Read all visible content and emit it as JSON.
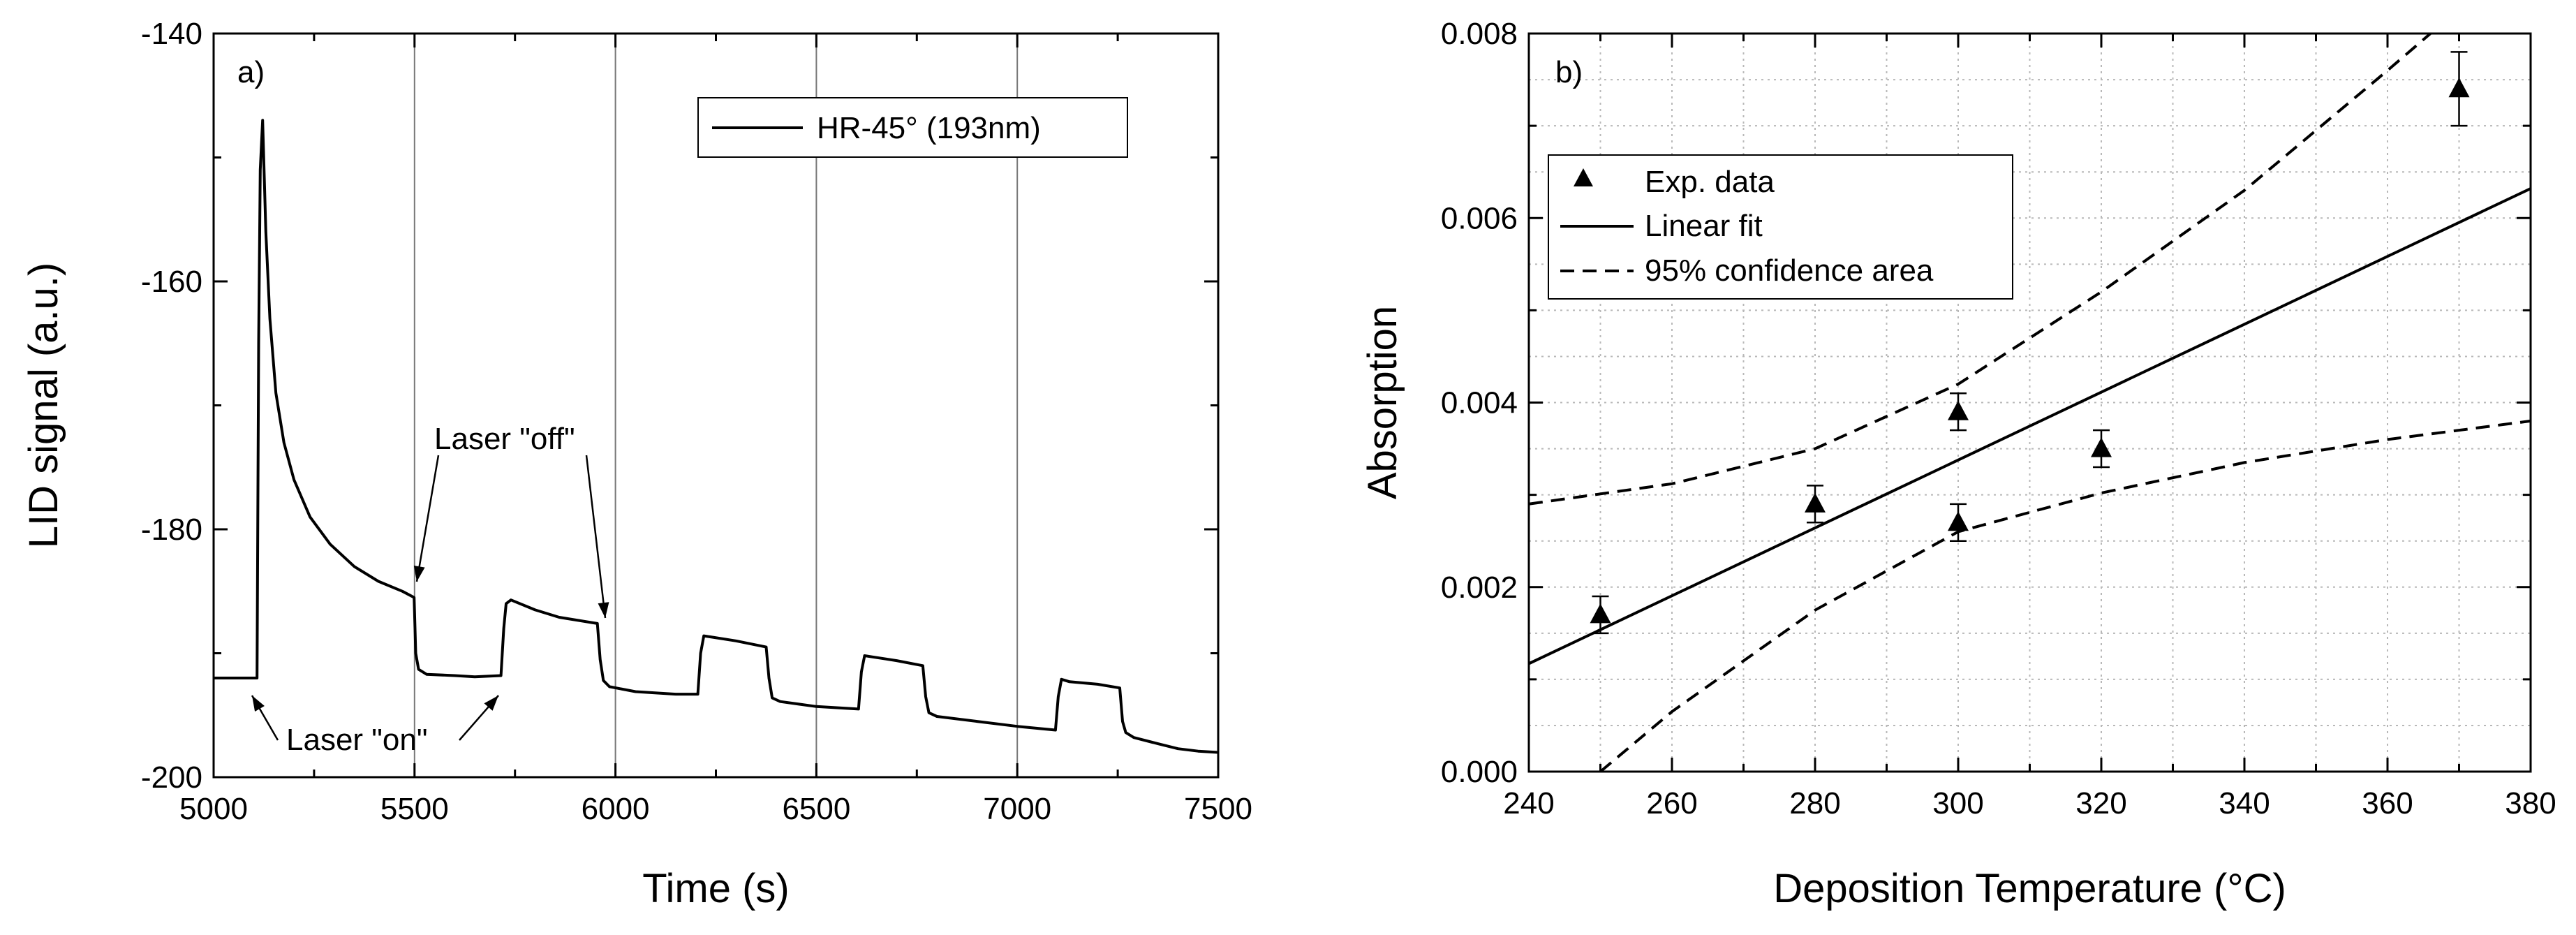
{
  "chart_data": [
    {
      "panel_label": "a)",
      "type": "line",
      "xlabel": "Time (s)",
      "ylabel": "LID signal (a.u.)",
      "xlim": [
        5000,
        7500
      ],
      "ylim": [
        -200,
        -140
      ],
      "xticks": [
        5000,
        5500,
        6000,
        6500,
        7000,
        7500
      ],
      "yticks": [
        -200,
        -180,
        -160,
        -140
      ],
      "vertical_lines": [
        5500,
        6000,
        6500,
        7000
      ],
      "legend": [
        "HR-45° (193nm)"
      ],
      "series": [
        {
          "name": "HR-45° (193nm)",
          "x": [
            5000,
            5108,
            5112,
            5116,
            5122,
            5130,
            5140,
            5155,
            5175,
            5200,
            5240,
            5290,
            5350,
            5410,
            5470,
            5499,
            5503,
            5510,
            5530,
            5600,
            5650,
            5715,
            5722,
            5728,
            5740,
            5800,
            5860,
            5955,
            5962,
            5970,
            5985,
            6050,
            6150,
            6205,
            6212,
            6220,
            6240,
            6300,
            6375,
            6382,
            6390,
            6410,
            6500,
            6605,
            6612,
            6620,
            6640,
            6700,
            6765,
            6772,
            6780,
            6800,
            6900,
            7000,
            7095,
            7102,
            7110,
            7130,
            7200,
            7255,
            7262,
            7270,
            7290,
            7350,
            7400,
            7450,
            7500
          ],
          "y": [
            -192.0,
            -192.0,
            -165.0,
            -151.0,
            -147.0,
            -156.0,
            -163.0,
            -169.0,
            -173.0,
            -176.0,
            -179.0,
            -181.2,
            -183.0,
            -184.2,
            -185.0,
            -185.5,
            -190.0,
            -191.3,
            -191.7,
            -191.8,
            -191.9,
            -191.8,
            -188.0,
            -186.0,
            -185.7,
            -186.5,
            -187.1,
            -187.6,
            -190.5,
            -192.2,
            -192.7,
            -193.1,
            -193.3,
            -193.3,
            -190.0,
            -188.6,
            -188.7,
            -189.0,
            -189.5,
            -192.0,
            -193.6,
            -193.9,
            -194.3,
            -194.5,
            -191.5,
            -190.2,
            -190.3,
            -190.6,
            -191.0,
            -193.5,
            -194.8,
            -195.1,
            -195.5,
            -195.9,
            -196.2,
            -193.5,
            -192.1,
            -192.3,
            -192.5,
            -192.8,
            -195.5,
            -196.4,
            -196.8,
            -197.3,
            -197.7,
            -197.9,
            -198.0
          ]
        }
      ],
      "annotations": [
        {
          "text": "Laser \"off\"",
          "points_to": [
            5500,
            -185.5
          ]
        },
        {
          "text": "Laser \"off\"",
          "points_to": [
            5960,
            -187.7
          ]
        },
        {
          "text": "Laser \"on\"",
          "points_to": [
            5108,
            -192.0
          ]
        },
        {
          "text": "Laser \"on\"",
          "points_to": [
            5720,
            -191.8
          ]
        }
      ]
    },
    {
      "panel_label": "b)",
      "type": "scatter",
      "xlabel": "Deposition Temperature (°C)",
      "ylabel": "Absorption",
      "xlim": [
        240,
        380
      ],
      "ylim": [
        0.0,
        0.008
      ],
      "xticks": [
        240,
        260,
        280,
        300,
        320,
        340,
        360,
        380
      ],
      "yticks": [
        0.0,
        0.002,
        0.004,
        0.006,
        0.008
      ],
      "ytick_labels": [
        "0.000",
        "0.002",
        "0.004",
        "0.006",
        "0.008"
      ],
      "grid": true,
      "legend": [
        "Exp. data",
        "Linear fit",
        "95% confidence area"
      ],
      "series": [
        {
          "name": "Exp. data",
          "x": [
            250,
            280,
            300,
            300,
            320,
            370
          ],
          "y": [
            0.0017,
            0.0029,
            0.0039,
            0.0027,
            0.0035,
            0.0074
          ],
          "err": [
            0.0002,
            0.0002,
            0.0002,
            0.0002,
            0.0002,
            0.0004
          ]
        },
        {
          "name": "Linear fit",
          "x": [
            240,
            380
          ],
          "y": [
            0.00117,
            0.00632
          ]
        },
        {
          "name": "95% confidence area upper",
          "x": [
            240,
            260,
            280,
            300,
            320,
            340,
            360,
            366
          ],
          "y": [
            0.0029,
            0.00312,
            0.0035,
            0.0042,
            0.0052,
            0.0063,
            0.0076,
            0.008
          ]
        },
        {
          "name": "95% confidence area lower",
          "x": [
            250,
            260,
            280,
            300,
            320,
            340,
            360,
            380
          ],
          "y": [
            0.0,
            0.00065,
            0.00175,
            0.0026,
            0.00302,
            0.00335,
            0.0036,
            0.0038
          ]
        }
      ]
    }
  ]
}
